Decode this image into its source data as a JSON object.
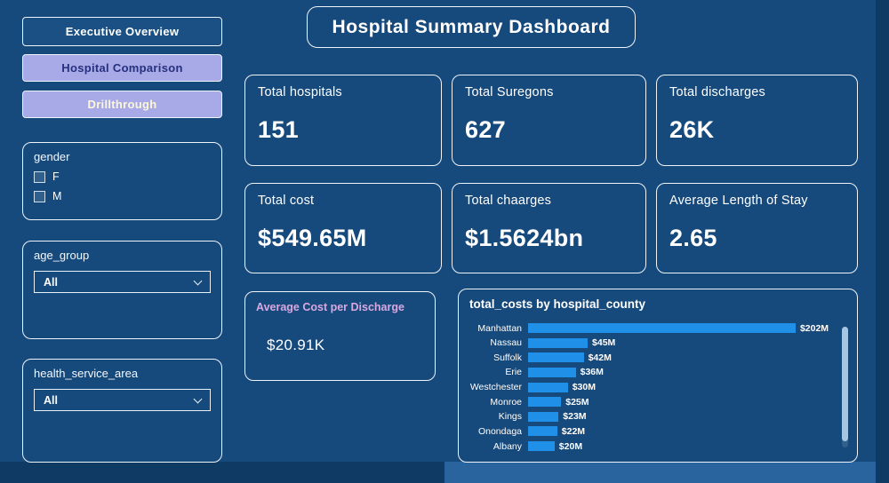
{
  "title": "Hospital Summary Dashboard",
  "nav": {
    "items": [
      {
        "label": "Executive Overview"
      },
      {
        "label": "Hospital Comparison"
      },
      {
        "label": "Drillthrough"
      }
    ]
  },
  "filters": {
    "gender": {
      "label": "gender",
      "options": [
        "F",
        "M"
      ]
    },
    "age_group": {
      "label": "age_group",
      "value": "All"
    },
    "health_service_area": {
      "label": "health_service_area",
      "value": "All"
    }
  },
  "kpis": [
    {
      "label": "Total hospitals",
      "value": "151"
    },
    {
      "label": "Total Suregons",
      "value": "627"
    },
    {
      "label": "Total discharges",
      "value": "26K"
    },
    {
      "label": "Total cost",
      "value": "$549.65M"
    },
    {
      "label": "Total chaarges",
      "value": "$1.5624bn"
    },
    {
      "label": "Average Length of Stay",
      "value": "2.65"
    }
  ],
  "avg_cost": {
    "label": "Average Cost per Discharge",
    "value": "$20.91K"
  },
  "chart_data": {
    "type": "bar",
    "orientation": "horizontal",
    "title": "total_costs by hospital_county",
    "categories": [
      "Manhattan",
      "Nassau",
      "Suffolk",
      "Erie",
      "Westchester",
      "Monroe",
      "Kings",
      "Onondaga",
      "Albany"
    ],
    "values": [
      202,
      45,
      42,
      36,
      30,
      25,
      23,
      22,
      20
    ],
    "value_labels": [
      "$202M",
      "$45M",
      "$42M",
      "$36M",
      "$30M",
      "$25M",
      "$23M",
      "$22M",
      "$20M"
    ],
    "unit": "USD millions",
    "xlim": [
      0,
      202
    ],
    "grid": "off",
    "legend": "off",
    "bar_color": "#1f8fe8"
  },
  "colors": {
    "background": "#16497c",
    "card_border": "#eef4fa",
    "accent_purple": "#a7aae7",
    "bar": "#1f8fe8",
    "avg_label_pink": "#d9a8e0"
  }
}
